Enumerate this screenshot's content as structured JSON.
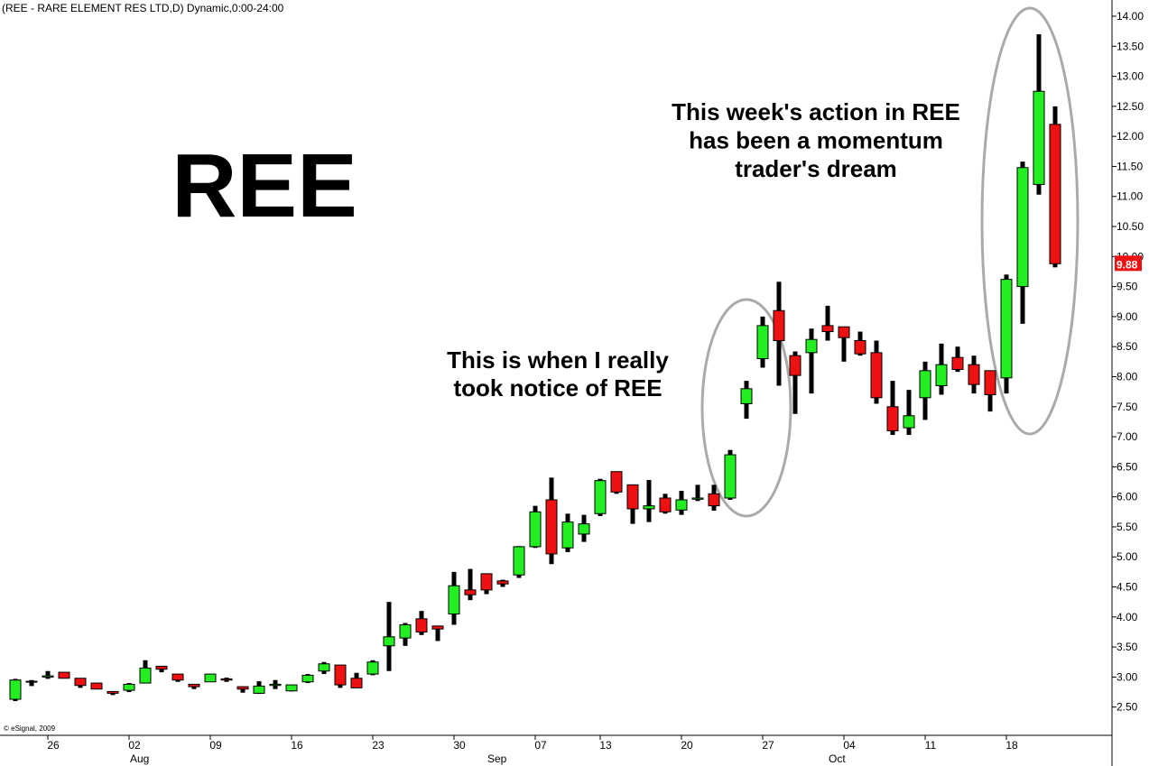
{
  "chart_data": {
    "type": "candlestick",
    "title": "(REE - RARE ELEMENT RES LTD,D) Dynamic,0:00-24:00",
    "watermark": "REE",
    "annotations": [
      {
        "lines": [
          "This week's action in REE",
          "has been a momentum",
          "trader's dream"
        ]
      },
      {
        "lines": [
          "This is when I really",
          "took notice of REE"
        ]
      }
    ],
    "copyright": "© eSignal, 2009",
    "categories": [
      null,
      null,
      "26",
      null,
      null,
      null,
      null,
      "02",
      null,
      null,
      null,
      null,
      "09",
      null,
      null,
      null,
      null,
      "16",
      null,
      null,
      null,
      null,
      "23",
      null,
      null,
      null,
      null,
      "30",
      null,
      null,
      null,
      null,
      "07",
      null,
      null,
      null,
      "13",
      null,
      null,
      null,
      null,
      "20",
      null,
      null,
      null,
      null,
      "27",
      null,
      null,
      null,
      null,
      "04",
      null,
      null,
      null,
      null,
      "11",
      null,
      null,
      null,
      null,
      "18",
      null,
      null,
      null
    ],
    "months": [
      null,
      null,
      null,
      null,
      null,
      null,
      null,
      "Aug",
      null,
      null,
      null,
      null,
      null,
      null,
      null,
      null,
      null,
      null,
      null,
      null,
      null,
      null,
      null,
      null,
      null,
      null,
      null,
      null,
      null,
      "Sep",
      null,
      null,
      null,
      null,
      null,
      null,
      null,
      null,
      null,
      null,
      null,
      null,
      null,
      null,
      null,
      null,
      null,
      null,
      null,
      null,
      "Oct",
      null,
      null,
      null,
      null,
      null,
      null,
      null,
      null,
      null,
      null,
      null,
      null,
      null,
      null
    ],
    "open": [
      2.63,
      2.92,
      3.0,
      3.08,
      2.98,
      2.9,
      2.76,
      2.78,
      2.9,
      3.18,
      3.05,
      2.88,
      2.92,
      2.97,
      2.84,
      2.73,
      2.86,
      2.77,
      2.92,
      3.1,
      3.2,
      2.98,
      3.05,
      3.52,
      3.65,
      3.97,
      3.85,
      4.05,
      4.45,
      4.72,
      4.6,
      4.7,
      5.17,
      5.95,
      5.15,
      5.38,
      5.72,
      6.42,
      6.2,
      5.8,
      5.98,
      5.78,
      5.96,
      6.05,
      5.98,
      7.55,
      8.3,
      9.1,
      8.35,
      8.4,
      8.85,
      8.83,
      8.6,
      8.4,
      7.5,
      7.15,
      7.65,
      7.85,
      8.32,
      8.2,
      8.1,
      7.98,
      9.5,
      11.2,
      12.2
    ],
    "high": [
      2.97,
      2.95,
      3.1,
      3.08,
      2.98,
      2.9,
      2.76,
      2.9,
      3.28,
      3.18,
      3.05,
      2.88,
      3.05,
      2.99,
      2.84,
      2.93,
      2.95,
      2.87,
      3.05,
      3.25,
      3.2,
      3.07,
      3.28,
      4.25,
      3.9,
      4.1,
      3.85,
      4.75,
      4.8,
      4.72,
      4.62,
      5.18,
      5.85,
      6.32,
      5.72,
      5.7,
      6.3,
      6.42,
      6.2,
      6.28,
      6.05,
      6.1,
      6.2,
      6.2,
      6.78,
      7.93,
      9.0,
      9.58,
      8.42,
      8.8,
      9.18,
      8.83,
      8.75,
      8.6,
      7.93,
      7.78,
      8.25,
      8.55,
      8.5,
      8.35,
      8.1,
      9.7,
      11.58,
      13.7,
      12.5
    ],
    "low": [
      2.6,
      2.85,
      2.97,
      2.98,
      2.82,
      2.8,
      2.7,
      2.75,
      2.9,
      3.08,
      2.92,
      2.8,
      2.92,
      2.92,
      2.74,
      2.72,
      2.8,
      2.76,
      2.9,
      3.05,
      2.82,
      2.82,
      3.03,
      3.1,
      3.52,
      3.7,
      3.6,
      3.87,
      4.28,
      4.38,
      4.5,
      4.65,
      5.15,
      4.88,
      5.08,
      5.25,
      5.68,
      6.05,
      5.55,
      5.58,
      5.72,
      5.7,
      5.93,
      5.77,
      5.95,
      7.3,
      8.15,
      7.85,
      7.38,
      7.72,
      8.6,
      8.25,
      8.35,
      7.55,
      7.03,
      7.03,
      7.28,
      7.7,
      8.08,
      7.72,
      7.42,
      7.72,
      8.88,
      11.03,
      9.82
    ],
    "close": [
      2.95,
      2.93,
      3.02,
      2.98,
      2.86,
      2.8,
      2.73,
      2.88,
      3.15,
      3.13,
      2.95,
      2.84,
      3.05,
      2.95,
      2.8,
      2.85,
      2.88,
      2.87,
      3.03,
      3.22,
      2.87,
      2.82,
      3.25,
      3.67,
      3.87,
      3.75,
      3.8,
      4.52,
      4.37,
      4.45,
      4.55,
      5.17,
      5.75,
      5.05,
      5.58,
      5.55,
      6.27,
      6.08,
      5.8,
      5.85,
      5.75,
      5.95,
      5.98,
      5.85,
      6.7,
      7.8,
      8.85,
      8.6,
      8.02,
      8.62,
      8.75,
      8.65,
      8.38,
      7.65,
      7.1,
      7.35,
      8.1,
      8.2,
      8.12,
      7.87,
      7.7,
      9.62,
      11.48,
      12.75,
      9.88
    ],
    "up_color": "#22ee22",
    "down_color": "#ee1111",
    "ylim": [
      2.03,
      14.27
    ],
    "yticks": [
      {
        "value": 2.5,
        "label": "2.50"
      },
      {
        "value": 3,
        "label": "3.00"
      },
      {
        "value": 3.5,
        "label": "3.50"
      },
      {
        "value": 4,
        "label": "4.00"
      },
      {
        "value": 4.5,
        "label": "4.50"
      },
      {
        "value": 5,
        "label": "5.00"
      },
      {
        "value": 5.5,
        "label": "5.50"
      },
      {
        "value": 6,
        "label": "6.00"
      },
      {
        "value": 6.5,
        "label": "6.50"
      },
      {
        "value": 7,
        "label": "7.00"
      },
      {
        "value": 7.5,
        "label": "7.50"
      },
      {
        "value": 8,
        "label": "8.00"
      },
      {
        "value": 8.5,
        "label": "8.50"
      },
      {
        "value": 9,
        "label": "9.00"
      },
      {
        "value": 9.5,
        "label": "9.50"
      },
      {
        "value": 10,
        "label": "10.00"
      },
      {
        "value": 10.5,
        "label": "10.50"
      },
      {
        "value": 11,
        "label": "11.00"
      },
      {
        "value": 11.5,
        "label": "11.50"
      },
      {
        "value": 12,
        "label": "12.00"
      },
      {
        "value": 12.5,
        "label": "12.50"
      },
      {
        "value": 13,
        "label": "13.00"
      },
      {
        "value": 13.5,
        "label": "13.50"
      },
      {
        "value": 14,
        "label": "14.00"
      }
    ],
    "grid": false
  }
}
